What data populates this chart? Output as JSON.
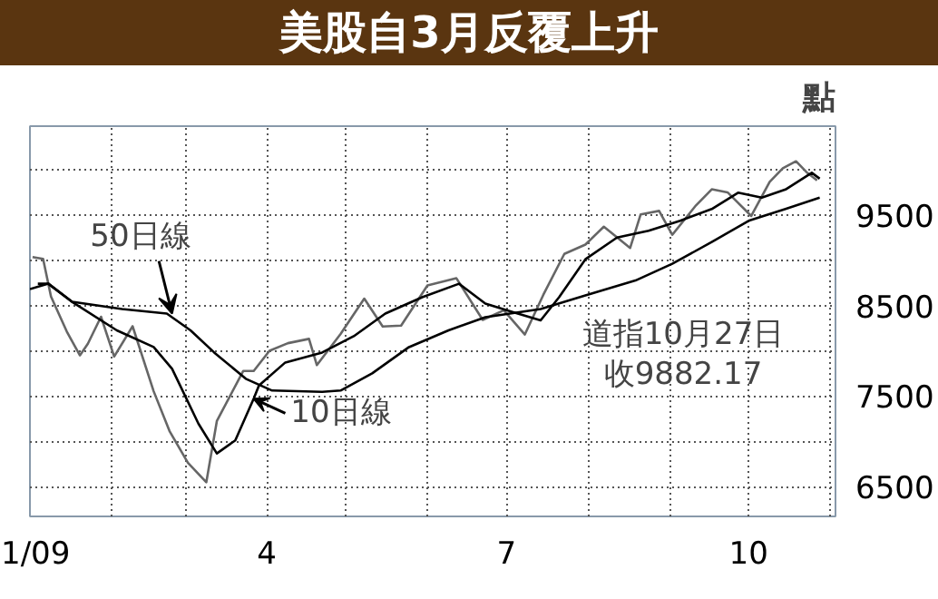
{
  "chart_data": {
    "type": "line",
    "title": "美股自3月反覆上升",
    "ylabel": "點",
    "xlim": [
      "2009-01-01",
      "2009-11-03"
    ],
    "ylim": [
      6170,
      10480
    ],
    "xticks": [
      {
        "value": "2009-01-01",
        "label": "1/09"
      },
      {
        "value": "2009-02-01",
        "label": null
      },
      {
        "value": "2009-03-01",
        "label": null
      },
      {
        "value": "2009-04-01",
        "label": "4"
      },
      {
        "value": "2009-05-01",
        "label": null
      },
      {
        "value": "2009-06-01",
        "label": null
      },
      {
        "value": "2009-07-01",
        "label": "7"
      },
      {
        "value": "2009-08-01",
        "label": null
      },
      {
        "value": "2009-09-01",
        "label": null
      },
      {
        "value": "2009-10-01",
        "label": "10"
      },
      {
        "value": "2009-11-01",
        "label": null
      }
    ],
    "yticks": [
      6500,
      {
        "value": 7000,
        "label": null
      },
      7500,
      {
        "value": 8000,
        "label": null
      },
      8500,
      {
        "value": 9000,
        "label": null
      },
      9500,
      {
        "value": 10000,
        "label": null
      }
    ],
    "grid": true,
    "series": [
      {
        "color": "#666666",
        "x": [
          "2009-01-02",
          "2009-01-06",
          "2009-01-09",
          "2009-01-15",
          "2009-01-20",
          "2009-01-23",
          "2009-01-28",
          "2009-02-02",
          "2009-02-09",
          "2009-02-17",
          "2009-02-23",
          "2009-03-02",
          "2009-03-09",
          "2009-03-13",
          "2009-03-23",
          "2009-03-27",
          "2009-04-02",
          "2009-04-09",
          "2009-04-17",
          "2009-04-20",
          "2009-04-29",
          "2009-05-08",
          "2009-05-15",
          "2009-05-22",
          "2009-06-01",
          "2009-06-12",
          "2009-06-22",
          "2009-06-30",
          "2009-07-08",
          "2009-07-15",
          "2009-07-23",
          "2009-07-31",
          "2009-08-07",
          "2009-08-17",
          "2009-08-21",
          "2009-08-28",
          "2009-09-02",
          "2009-09-11",
          "2009-09-17",
          "2009-09-23",
          "2009-10-02",
          "2009-10-09",
          "2009-10-14",
          "2009-10-19",
          "2009-10-23",
          "2009-10-27"
        ],
        "values": [
          9034,
          9015,
          8599,
          8212,
          7949,
          8077,
          8375,
          7936,
          8270,
          7552,
          7114,
          6763,
          6547,
          7223,
          7776,
          7776,
          8000,
          8083,
          8131,
          7841,
          8185,
          8575,
          8268,
          8277,
          8721,
          8800,
          8340,
          8447,
          8179,
          8616,
          9069,
          9172,
          9370,
          9135,
          9506,
          9544,
          9280,
          9605,
          9783,
          9749,
          9488,
          9865,
          10015,
          10092,
          9972,
          9882
        ]
      },
      {
        "color": "#000000",
        "x": [
          "2009-01-04",
          "2009-01-08",
          "2009-01-17",
          "2009-02-03",
          "2009-02-17",
          "2009-02-24",
          "2009-03-06",
          "2009-03-13",
          "2009-03-20",
          "2009-03-27",
          "2009-03-29",
          "2009-04-08",
          "2009-04-22",
          "2009-05-04",
          "2009-05-16",
          "2009-05-30",
          "2009-06-13",
          "2009-06-23",
          "2009-07-03",
          "2009-07-14",
          "2009-07-21",
          "2009-07-31",
          "2009-08-12",
          "2009-08-24",
          "2009-09-05",
          "2009-09-17",
          "2009-09-27",
          "2009-10-06",
          "2009-10-15",
          "2009-10-25",
          "2009-10-28"
        ],
        "values": [
          8740,
          8740,
          8540,
          8225,
          8040,
          7800,
          7195,
          6865,
          7010,
          7470,
          7615,
          7870,
          7980,
          8160,
          8410,
          8590,
          8740,
          8520,
          8430,
          8335,
          8590,
          9010,
          9250,
          9325,
          9435,
          9565,
          9745,
          9690,
          9780,
          9965,
          9900
        ]
      },
      {
        "color": "#000000",
        "x": [
          "2009-01-01",
          "2009-01-08",
          "2009-01-17",
          "2009-02-05",
          "2009-02-22",
          "2009-03-03",
          "2009-03-12",
          "2009-03-24",
          "2009-04-03",
          "2009-04-22",
          "2009-04-29",
          "2009-05-11",
          "2009-05-25",
          "2009-06-09",
          "2009-06-23",
          "2009-07-14",
          "2009-07-31",
          "2009-08-19",
          "2009-09-02",
          "2009-09-17",
          "2009-10-01",
          "2009-10-15",
          "2009-10-28"
        ],
        "values": [
          8680,
          8740,
          8540,
          8460,
          8410,
          8225,
          7980,
          7690,
          7560,
          7545,
          7560,
          7750,
          8040,
          8225,
          8370,
          8460,
          8610,
          8775,
          8960,
          9200,
          9435,
          9565,
          9690
        ]
      }
    ],
    "annotations": [
      {
        "text": "50日線",
        "x": "2009-02-24",
        "y": 8410
      },
      {
        "text": "10日線",
        "x": "2009-03-27",
        "y": 7470
      },
      "道指10月27日",
      "收9882.17"
    ]
  }
}
